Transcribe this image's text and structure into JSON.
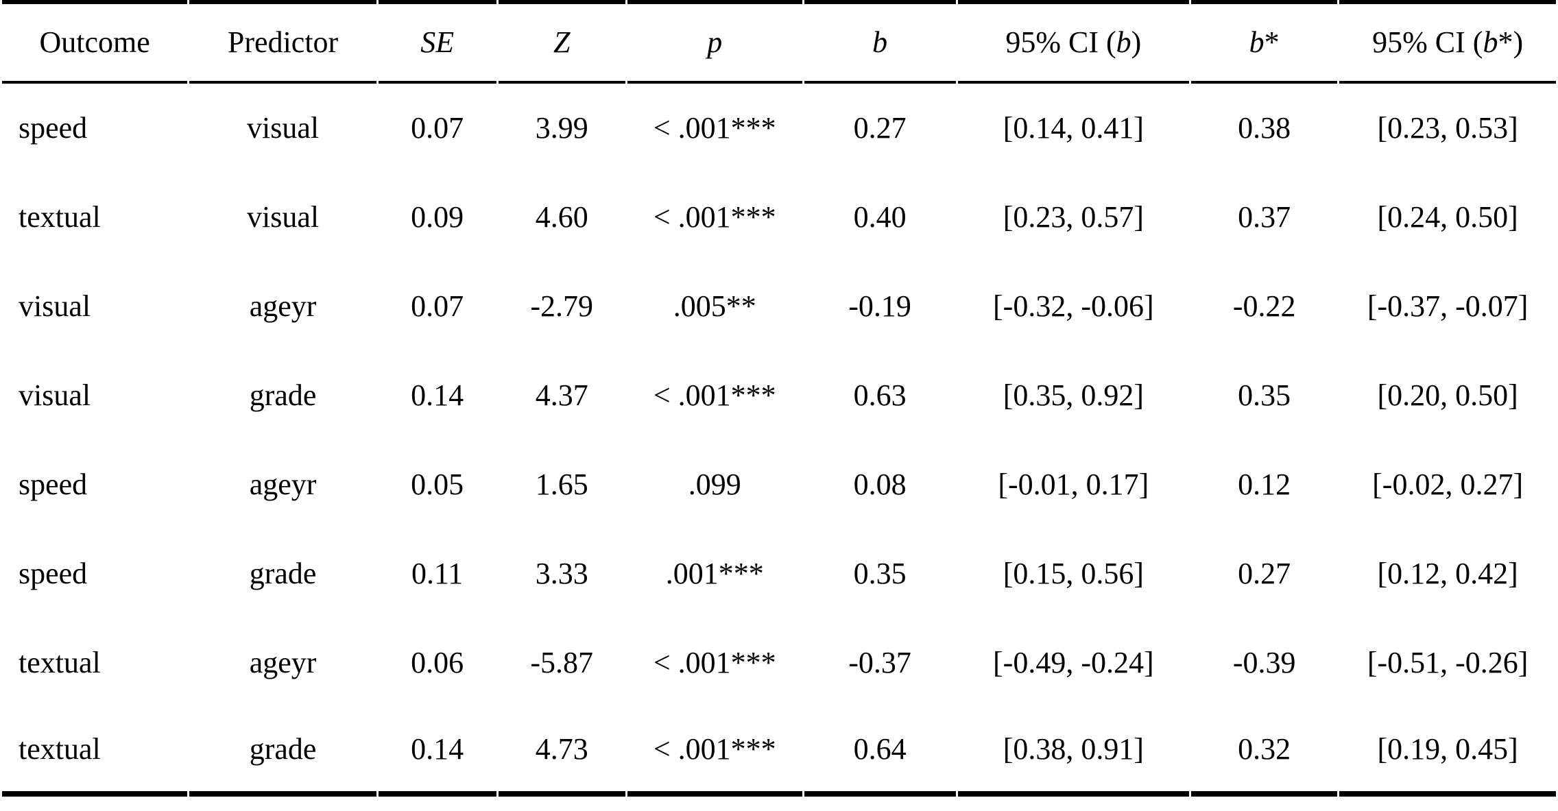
{
  "colors": {
    "background": "#ffffff",
    "text": "#000000",
    "rule": "#000000"
  },
  "table": {
    "columns": [
      {
        "pre": "Outcome",
        "it": "",
        "post": ""
      },
      {
        "pre": "Predictor",
        "it": "",
        "post": ""
      },
      {
        "pre": "",
        "it": "SE",
        "post": ""
      },
      {
        "pre": "",
        "it": "Z",
        "post": ""
      },
      {
        "pre": "",
        "it": "p",
        "post": ""
      },
      {
        "pre": "",
        "it": "b",
        "post": ""
      },
      {
        "pre": "95% CI (",
        "it": "b",
        "post": ")"
      },
      {
        "pre": "",
        "it": "b",
        "post": "*"
      },
      {
        "pre": "95% CI (",
        "it": "b",
        "post": "*)"
      }
    ],
    "rows": [
      [
        "speed",
        "visual",
        "0.07",
        "3.99",
        "< .001***",
        "0.27",
        "[0.14, 0.41]",
        "0.38",
        "[0.23, 0.53]"
      ],
      [
        "textual",
        "visual",
        "0.09",
        "4.60",
        "< .001***",
        "0.40",
        "[0.23, 0.57]",
        "0.37",
        "[0.24, 0.50]"
      ],
      [
        "visual",
        "ageyr",
        "0.07",
        "-2.79",
        ".005**",
        "-0.19",
        "[-0.32, -0.06]",
        "-0.22",
        "[-0.37, -0.07]"
      ],
      [
        "visual",
        "grade",
        "0.14",
        "4.37",
        "< .001***",
        "0.63",
        "[0.35, 0.92]",
        "0.35",
        "[0.20, 0.50]"
      ],
      [
        "speed",
        "ageyr",
        "0.05",
        "1.65",
        ".099",
        "0.08",
        "[-0.01, 0.17]",
        "0.12",
        "[-0.02, 0.27]"
      ],
      [
        "speed",
        "grade",
        "0.11",
        "3.33",
        ".001***",
        "0.35",
        "[0.15, 0.56]",
        "0.27",
        "[0.12, 0.42]"
      ],
      [
        "textual",
        "ageyr",
        "0.06",
        "-5.87",
        "< .001***",
        "-0.37",
        "[-0.49, -0.24]",
        "-0.39",
        "[-0.51, -0.26]"
      ],
      [
        "textual",
        "grade",
        "0.14",
        "4.73",
        "< .001***",
        "0.64",
        "[0.38, 0.91]",
        "0.32",
        "[0.19, 0.45]"
      ]
    ]
  }
}
